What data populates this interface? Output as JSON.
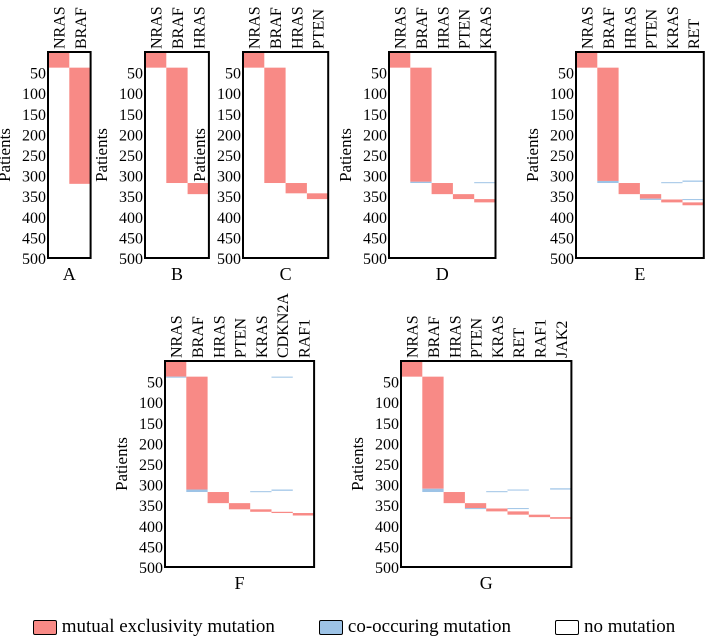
{
  "chart_data": {
    "type": "heatmap",
    "ylabel": "Patients",
    "ylim": [
      0,
      500
    ],
    "yticks": [
      50,
      100,
      150,
      200,
      250,
      300,
      350,
      400,
      450,
      500
    ],
    "colors": {
      "mutual": "#f88a86",
      "co": "#9dc3e6",
      "none": "#ffffff"
    },
    "legend": [
      {
        "key": "mutual",
        "label": "mutual exclusivity mutation"
      },
      {
        "key": "co",
        "label": "co-occuring mutation"
      },
      {
        "key": "none",
        "label": "no mutation"
      }
    ],
    "panels": [
      {
        "label": "A",
        "genes": [
          "NRAS",
          "BRAF"
        ],
        "segments": [
          [
            "NRAS",
            0,
            38,
            "mutual"
          ],
          [
            "BRAF",
            38,
            320,
            "mutual"
          ]
        ]
      },
      {
        "label": "B",
        "genes": [
          "NRAS",
          "BRAF",
          "HRAS"
        ],
        "segments": [
          [
            "NRAS",
            0,
            38,
            "mutual"
          ],
          [
            "BRAF",
            38,
            318,
            "mutual"
          ],
          [
            "HRAS",
            318,
            345,
            "mutual"
          ]
        ]
      },
      {
        "label": "C",
        "genes": [
          "NRAS",
          "BRAF",
          "HRAS",
          "PTEN"
        ],
        "segments": [
          [
            "NRAS",
            0,
            38,
            "mutual"
          ],
          [
            "BRAF",
            38,
            318,
            "mutual"
          ],
          [
            "HRAS",
            318,
            343,
            "mutual"
          ],
          [
            "PTEN",
            343,
            357,
            "mutual"
          ]
        ]
      },
      {
        "label": "D",
        "genes": [
          "NRAS",
          "BRAF",
          "HRAS",
          "PTEN",
          "KRAS"
        ],
        "segments": [
          [
            "NRAS",
            0,
            38,
            "mutual"
          ],
          [
            "BRAF",
            38,
            315,
            "mutual"
          ],
          [
            "BRAF",
            315,
            318,
            "co"
          ],
          [
            "HRAS",
            318,
            345,
            "mutual"
          ],
          [
            "PTEN",
            345,
            357,
            "mutual"
          ],
          [
            "KRAS",
            357,
            365,
            "mutual"
          ],
          [
            "KRAS",
            316,
            318,
            "co"
          ]
        ]
      },
      {
        "label": "E",
        "genes": [
          "NRAS",
          "BRAF",
          "HRAS",
          "PTEN",
          "KRAS",
          "RET"
        ],
        "segments": [
          [
            "NRAS",
            0,
            38,
            "mutual"
          ],
          [
            "BRAF",
            38,
            313,
            "mutual"
          ],
          [
            "BRAF",
            313,
            318,
            "co"
          ],
          [
            "HRAS",
            318,
            345,
            "mutual"
          ],
          [
            "PTEN",
            345,
            356,
            "mutual"
          ],
          [
            "PTEN",
            356,
            359,
            "co"
          ],
          [
            "KRAS",
            358,
            365,
            "mutual"
          ],
          [
            "KRAS",
            316,
            318,
            "co"
          ],
          [
            "RET",
            365,
            372,
            "mutual"
          ],
          [
            "RET",
            312,
            315,
            "co"
          ],
          [
            "RET",
            357,
            359,
            "co"
          ]
        ]
      },
      {
        "label": "F",
        "genes": [
          "NRAS",
          "BRAF",
          "HRAS",
          "PTEN",
          "KRAS",
          "CDKN2A",
          "RAF1"
        ],
        "segments": [
          [
            "NRAS",
            0,
            38,
            "mutual"
          ],
          [
            "NRAS",
            38,
            40,
            "co"
          ],
          [
            "BRAF",
            38,
            312,
            "mutual"
          ],
          [
            "BRAF",
            312,
            318,
            "co"
          ],
          [
            "HRAS",
            318,
            345,
            "mutual"
          ],
          [
            "PTEN",
            345,
            360,
            "mutual"
          ],
          [
            "KRAS",
            360,
            366,
            "mutual"
          ],
          [
            "KRAS",
            316,
            318,
            "co"
          ],
          [
            "CDKN2A",
            366,
            369,
            "mutual"
          ],
          [
            "CDKN2A",
            38,
            40,
            "co"
          ],
          [
            "CDKN2A",
            312,
            315,
            "co"
          ],
          [
            "RAF1",
            369,
            375,
            "mutual"
          ]
        ]
      },
      {
        "label": "G",
        "genes": [
          "NRAS",
          "BRAF",
          "HRAS",
          "PTEN",
          "KRAS",
          "RET",
          "RAF1",
          "JAK2"
        ],
        "segments": [
          [
            "NRAS",
            0,
            38,
            "mutual"
          ],
          [
            "BRAF",
            38,
            310,
            "mutual"
          ],
          [
            "BRAF",
            310,
            318,
            "co"
          ],
          [
            "HRAS",
            318,
            345,
            "mutual"
          ],
          [
            "PTEN",
            345,
            357,
            "mutual"
          ],
          [
            "PTEN",
            357,
            359,
            "co"
          ],
          [
            "KRAS",
            358,
            365,
            "mutual"
          ],
          [
            "KRAS",
            316,
            318,
            "co"
          ],
          [
            "RET",
            365,
            373,
            "mutual"
          ],
          [
            "RET",
            312,
            314,
            "co"
          ],
          [
            "RET",
            357,
            359,
            "co"
          ],
          [
            "RAF1",
            373,
            379,
            "mutual"
          ],
          [
            "JAK2",
            379,
            383,
            "mutual"
          ],
          [
            "JAK2",
            309,
            312,
            "co"
          ]
        ]
      }
    ]
  }
}
